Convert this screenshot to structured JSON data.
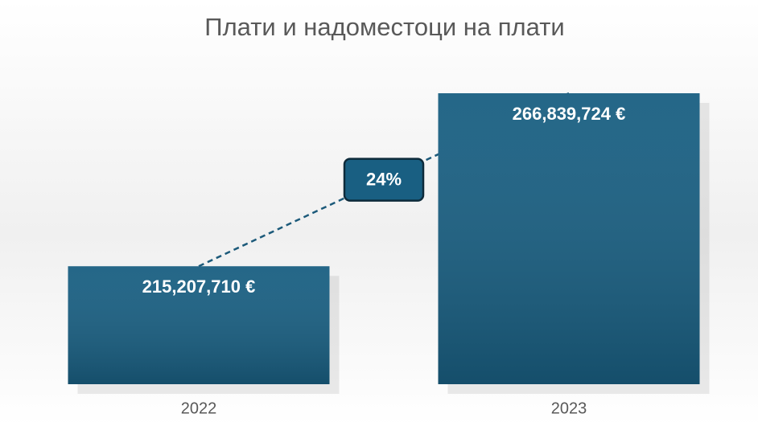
{
  "chart_data": {
    "type": "bar",
    "title": "Плати и надоместоци на плати",
    "categories": [
      "2022",
      "2023"
    ],
    "values": [
      215207710,
      266839724
    ],
    "value_labels": [
      "215,207,710 €",
      "266,839,724 €"
    ],
    "annotation": "24%",
    "color": "#195f82",
    "ylim": [
      180000000,
      275000000
    ]
  }
}
